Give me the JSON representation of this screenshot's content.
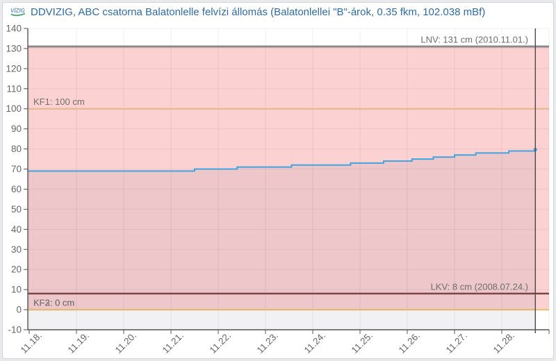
{
  "header": {
    "logo_name": "vizig-logo",
    "title": "DDVIZIG, ABC csatorna Balatonlelle felvízi állomás (Balatonlellei \"B\"-árok, 0.35 fkm, 102.038 mBf)",
    "title_color": "#2e6ca8"
  },
  "chart_data": {
    "type": "line",
    "title": "DDVIZIG, ABC csatorna Balatonlelle felvízi állomás (Balatonlellei \"B\"-árok, 0.35 fkm, 102.038 mBf)",
    "xlabel": "",
    "ylabel": "",
    "unit": "cm",
    "ylim": [
      -10,
      140
    ],
    "y_tick_step": 10,
    "y_ticks": [
      -10,
      0,
      10,
      20,
      30,
      40,
      50,
      60,
      70,
      80,
      90,
      100,
      110,
      120,
      130,
      140
    ],
    "x_range_days": [
      17.97,
      29.0
    ],
    "x_ticks": [
      {
        "day": 18,
        "label": "11.18."
      },
      {
        "day": 19,
        "label": "11.19."
      },
      {
        "day": 20,
        "label": "11.20."
      },
      {
        "day": 21,
        "label": "11.21."
      },
      {
        "day": 22,
        "label": "11.22."
      },
      {
        "day": 23,
        "label": "11.23."
      },
      {
        "day": 24,
        "label": "11.24."
      },
      {
        "day": 25,
        "label": "11.25."
      },
      {
        "day": 26,
        "label": "11.26."
      },
      {
        "day": 27,
        "label": "11.27."
      },
      {
        "day": 28,
        "label": "11.28."
      },
      {
        "day": 29,
        "label": ""
      }
    ],
    "series": [
      {
        "name": "water-level",
        "color": "#3fa5e0",
        "width": 2,
        "end_marker": true,
        "points": [
          [
            17.97,
            69
          ],
          [
            21.5,
            70
          ],
          [
            22.4,
            71
          ],
          [
            23.55,
            72
          ],
          [
            24.8,
            73
          ],
          [
            25.5,
            74
          ],
          [
            26.1,
            75
          ],
          [
            26.55,
            76
          ],
          [
            27.0,
            77
          ],
          [
            27.45,
            78
          ],
          [
            28.15,
            79
          ],
          [
            28.71,
            79.7
          ]
        ]
      }
    ],
    "area_fill_color": "rgba(90,90,120,0.085)",
    "bands": [
      {
        "from": 0,
        "to": 131,
        "color": "#fbd1d1"
      }
    ],
    "reference_lines": [
      {
        "id": "LNV",
        "value": 131,
        "label": "LNV: 131 cm (2010.11.01.)",
        "color": "#8a8a8a",
        "width": 3,
        "align": "right"
      },
      {
        "id": "KF1",
        "value": 100,
        "label": "KF1: 100 cm",
        "color": "#e3b68b",
        "width": 2,
        "align": "left"
      },
      {
        "id": "LKV",
        "value": 8,
        "label": "LKV: 8 cm (2008.07.24.)",
        "color": "#7d4444",
        "width": 2.5,
        "align": "right"
      },
      {
        "id": "KF2",
        "value": 0,
        "label": "KF2: 0 cm",
        "color": "#eec172",
        "width": 2,
        "align": "left"
      },
      {
        "id": "KF3",
        "value": 0,
        "label": "KF3: 0 cm",
        "color": "#eec172",
        "width": 2,
        "align": "left"
      }
    ],
    "now_line": {
      "day": 28.71,
      "color": "#4a4a4a",
      "width": 1.4
    },
    "grid_on": true,
    "grid_color": "rgba(0,0,0,0.06)",
    "axis_color": "#555555",
    "tick_label_color": "#666666",
    "ref_label_color": "#6e6e6e",
    "legend": "none"
  }
}
